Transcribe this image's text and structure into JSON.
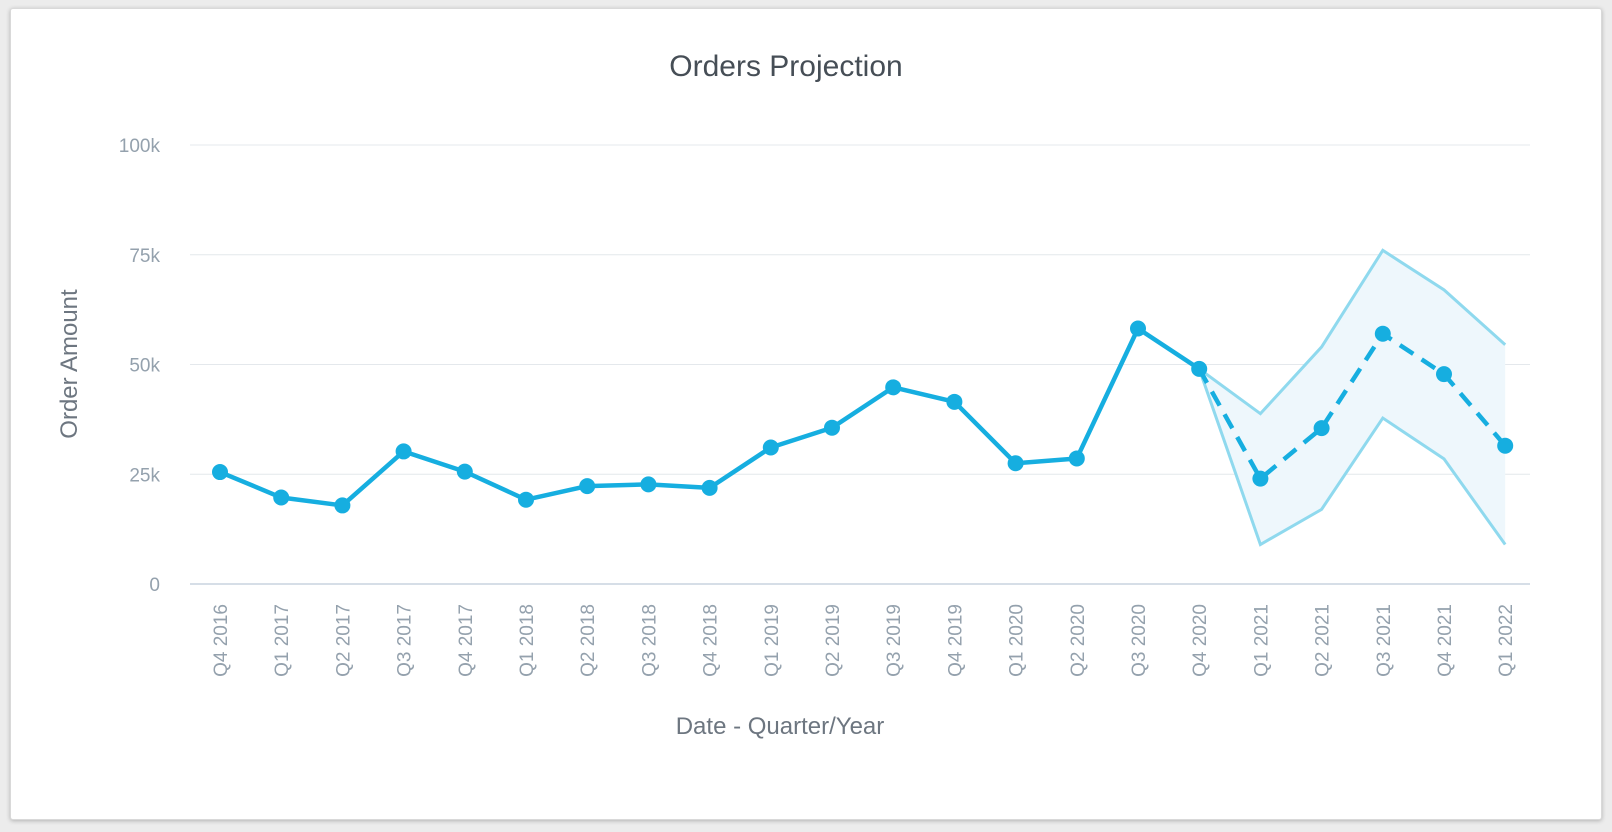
{
  "chart_data": {
    "type": "line",
    "title": "Orders Projection",
    "xlabel": "Date - Quarter/Year",
    "ylabel": "Order Amount",
    "categories": [
      "Q4 2016",
      "Q1 2017",
      "Q2 2017",
      "Q3 2017",
      "Q4 2017",
      "Q1 2018",
      "Q2 2018",
      "Q3 2018",
      "Q4 2018",
      "Q1 2019",
      "Q2 2019",
      "Q3 2019",
      "Q4 2019",
      "Q1 2020",
      "Q2 2020",
      "Q3 2020",
      "Q4 2020",
      "Q1 2021",
      "Q2 2021",
      "Q3 2021",
      "Q4 2021",
      "Q1 2022"
    ],
    "ylim": [
      0,
      100000
    ],
    "yticks": [
      0,
      25000,
      50000,
      75000,
      100000
    ],
    "ytick_labels": [
      "0",
      "25k",
      "50k",
      "75k",
      "100k"
    ],
    "grid": true,
    "series": [
      {
        "style": "solid",
        "values": [
          25500,
          19700,
          17900,
          30200,
          25600,
          19200,
          22300,
          22700,
          21900,
          31100,
          35600,
          44800,
          41500,
          27500,
          28600,
          58200,
          49000,
          null,
          null,
          null,
          null,
          null
        ]
      },
      {
        "style": "dashed",
        "values": [
          null,
          null,
          null,
          null,
          null,
          null,
          null,
          null,
          null,
          null,
          null,
          null,
          null,
          null,
          null,
          null,
          49000,
          24000,
          35500,
          57000,
          47800,
          31500
        ]
      }
    ],
    "confidence_band": {
      "upper": [
        null,
        null,
        null,
        null,
        null,
        null,
        null,
        null,
        null,
        null,
        null,
        null,
        null,
        null,
        null,
        null,
        49000,
        38800,
        54000,
        76000,
        67000,
        54500
      ],
      "lower": [
        null,
        null,
        null,
        null,
        null,
        null,
        null,
        null,
        null,
        null,
        null,
        null,
        null,
        null,
        null,
        null,
        49000,
        9000,
        17000,
        37800,
        28500,
        9000
      ]
    },
    "colors": {
      "line": "#16aee0",
      "band_line": "#8fd9ee",
      "band_fill": "#eef7fc",
      "grid": "#e4e8ec",
      "axis": "#c9d4df"
    }
  }
}
